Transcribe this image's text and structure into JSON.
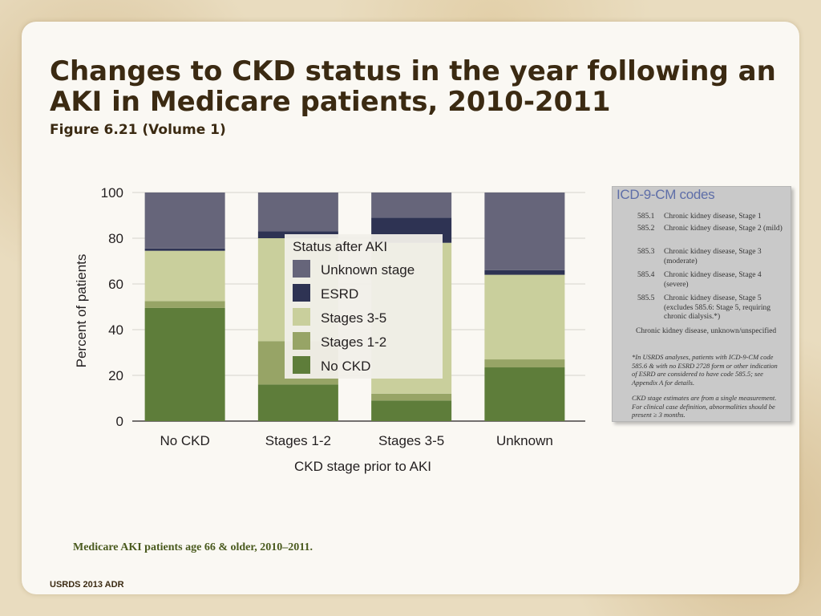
{
  "slide": {
    "title": "Changes to CKD status in the year following an AKI in Medicare patients, 2010-2011",
    "subtitle": "Figure 6.21 (Volume 1)",
    "footnote": "Medicare AKI patients age 66 & older, 2010–2011.",
    "footer": "USRDS 2013 ADR"
  },
  "chart_data": {
    "type": "bar",
    "stacked": true,
    "xlabel": "CKD stage prior to AKI",
    "ylabel": "Percent of patients",
    "ylim": [
      0,
      100
    ],
    "yticks": [
      "0",
      "20",
      "40",
      "60",
      "80",
      "100"
    ],
    "categories": [
      "No CKD",
      "Stages 1-2",
      "Stages 3-5",
      "Unknown"
    ],
    "legend_title": "Status after AKI",
    "series": [
      {
        "name": "No CKD",
        "color": "#5e7d3a",
        "values": [
          49.5,
          16,
          9,
          23.5
        ]
      },
      {
        "name": "Stages 1-2",
        "color": "#97a466",
        "values": [
          3,
          19,
          3,
          3.5
        ]
      },
      {
        "name": "Stages 3-5",
        "color": "#c9cf9c",
        "values": [
          22,
          45,
          66,
          37
        ]
      },
      {
        "name": "ESRD",
        "color": "#2e3353",
        "values": [
          1,
          3,
          11,
          2
        ]
      },
      {
        "name": "Unknown stage",
        "color": "#66657a",
        "values": [
          24.5,
          17,
          11,
          34
        ]
      }
    ],
    "legend_order": [
      "Unknown stage",
      "ESRD",
      "Stages 3-5",
      "Stages 1-2",
      "No CKD"
    ]
  },
  "icd": {
    "title": "ICD-9-CM codes",
    "rows": [
      {
        "code": "585.1",
        "desc": "Chronic kidney disease, Stage 1"
      },
      {
        "code": "585.2",
        "desc": "Chronic kidney disease, Stage 2 (mild)"
      },
      {
        "code": "585.3",
        "desc": "Chronic kidney disease, Stage 3 (moderate)"
      },
      {
        "code": "585.4",
        "desc": "Chronic kidney disease, Stage 4 (severe)"
      },
      {
        "code": "585.5",
        "desc": "Chronic kidney disease, Stage 5 (excludes 585.6: Stage 5, requiring chronic dialysis.*)"
      }
    ],
    "other": "Chronic kidney disease, unknown/unspecified",
    "note1": "*In USRDS analyses, patients with ICD-9-CM code 585.6 & with no ESRD 2728 form or other indication of ESRD are considered to have code 585.5; see Appendix A for details.",
    "note2": "CKD stage estimates are from a single measurement. For clinical case definition, abnormalities should be present ≥ 3 months."
  }
}
